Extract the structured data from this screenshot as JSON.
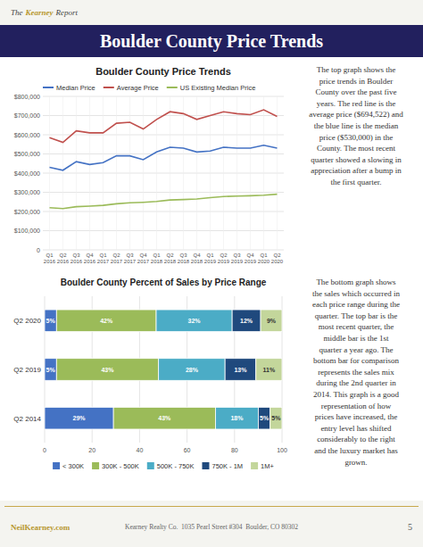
{
  "title": "Boulder County Price Trends",
  "brand": [
    "The",
    "Kearney",
    "Report"
  ],
  "annotations": [
    "The top graph shows the\nprice trends in Boulder\nCounty over the past five\nyears.  The red line is the\naverage price ($694,522) and\nthe blue line is the median\nprice ($530,000) in the\nCounty.  The most recent\nquarter showed a slowing in\nappreciation after a bump in\nthe first quarter.",
    "The bottom graph shows\nthe sales which occurred in\neach price range during the\nquarter.  The top bar is the\nmost recent quarter, the\nmiddle bar is the 1st\nquarter a year ago.  The\nbottom bar for comparison\nrepresents the sales mix\nduring the 2nd quarter in\n2014.  This graph is a good\nrepresentation of how\nprices have increased, the\nentry level has shifted\nconsiderably to the right\nand the luxury market has\ngrown."
  ],
  "footer": [
    "NeilKearney.com",
    "Kearney Realty Co.  1035 Pearl Street #304  Boulder, CO 80302",
    "5"
  ],
  "chart_data": [
    {
      "type": "line",
      "title": "Boulder County Price Trends",
      "categories": [
        "Q1\n2016",
        "Q2\n2016",
        "Q3\n2016",
        "Q4\n2016",
        "Q1\n2017",
        "Q2\n2017",
        "Q3\n2017",
        "Q4\n2017",
        "Q1\n2018",
        "Q2\n2018",
        "Q3\n2018",
        "Q4\n2018",
        "Q1\n2019",
        "Q2\n2019",
        "Q3\n2019",
        "Q4\n2019",
        "Q1\n2020",
        "Q2\n2020"
      ],
      "series": [
        {
          "name": "Median Price",
          "color": "#4472c4",
          "values": [
            430000,
            415000,
            460000,
            445000,
            455000,
            490000,
            490000,
            470000,
            510000,
            535000,
            530000,
            510000,
            515000,
            535000,
            530000,
            530000,
            545000,
            530000
          ]
        },
        {
          "name": "Average Price",
          "color": "#c0504d",
          "values": [
            585000,
            560000,
            620000,
            610000,
            610000,
            660000,
            665000,
            630000,
            680000,
            720000,
            710000,
            680000,
            700000,
            720000,
            710000,
            705000,
            730000,
            695000
          ]
        },
        {
          "name": "US Existing Median Price",
          "color": "#9bbb59",
          "values": [
            220000,
            215000,
            225000,
            228000,
            232000,
            240000,
            245000,
            248000,
            252000,
            260000,
            262000,
            265000,
            272000,
            278000,
            280000,
            282000,
            285000,
            290000
          ]
        }
      ],
      "ylim": [
        0,
        800000
      ],
      "yticks": [
        0,
        {
          "value": 100000,
          "label": "$100,000"
        },
        {
          "value": 200000,
          "label": "$200,000"
        },
        {
          "value": 300000,
          "label": "$300,000"
        },
        {
          "value": 400000,
          "label": "$400,000"
        },
        {
          "value": 500000,
          "label": "$500,000"
        },
        {
          "value": 600000,
          "label": "$600,000"
        },
        {
          "value": 700000,
          "label": "$700,000"
        },
        {
          "value": 800000,
          "label": "$800,000"
        }
      ],
      "grid": true,
      "legend": "upper left"
    },
    {
      "type": "bar",
      "orientation": "horizontal",
      "stacked": true,
      "title": "Boulder County Percent of Sales by Price Range",
      "categories": [
        "Q2 2020",
        "Q2 2019",
        "Q2 2014"
      ],
      "series": [
        {
          "name": "< 300K",
          "color": "#4472c4",
          "values": [
            5,
            5,
            29
          ],
          "value_labels": [
            "5%",
            "5%",
            "29%"
          ]
        },
        {
          "name": "300K - 500K",
          "color": "#9bbb59",
          "values": [
            42,
            43,
            43
          ],
          "value_labels": [
            "42%",
            "43%",
            "43%"
          ]
        },
        {
          "name": "500K - 750K",
          "color": "#4bacc6",
          "values": [
            32,
            28,
            18
          ],
          "value_labels": [
            "32%",
            "28%",
            "18%"
          ]
        },
        {
          "name": "750K - 1M",
          "color": "#1f497d",
          "values": [
            12,
            13,
            5
          ],
          "value_labels": [
            "12%",
            "13%",
            "5%"
          ]
        },
        {
          "name": "1M+",
          "color": "#c3d69b",
          "values": [
            9,
            11,
            5
          ],
          "value_labels": [
            "9%",
            "11%",
            "5%"
          ]
        }
      ],
      "xlim": [
        0,
        100
      ],
      "xticks": [
        0,
        20,
        40,
        60,
        80,
        100
      ],
      "grid": true,
      "data_labels": true,
      "legend": "lower center"
    }
  ]
}
